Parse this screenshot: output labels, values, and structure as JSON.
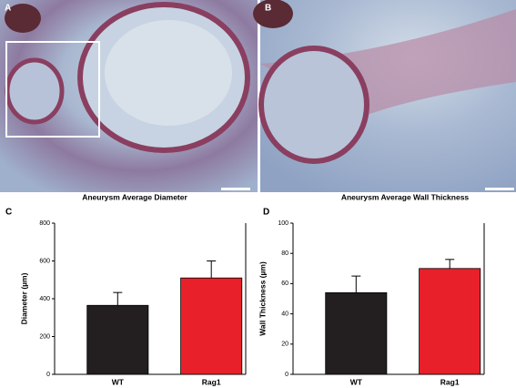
{
  "panel_labels": [
    "A",
    "B",
    "C",
    "D"
  ],
  "chart_data": [
    {
      "type": "bar",
      "title": "Aneurysm Average Diameter",
      "y_label": "Diameter (µm)",
      "categories": [
        "WT",
        "Rag1"
      ],
      "values": [
        365,
        510
      ],
      "errors": [
        68,
        90
      ],
      "colors": [
        "#231f20",
        "#e8202a"
      ],
      "ylim": [
        0,
        800
      ],
      "yticks": [
        0,
        200,
        400,
        600,
        800
      ]
    },
    {
      "type": "bar",
      "title": "Aneurysm Average Wall Thickness",
      "y_label": "Wall Thickness (µm)",
      "categories": [
        "WT",
        "Rag1"
      ],
      "values": [
        54,
        70
      ],
      "errors": [
        11,
        6
      ],
      "colors": [
        "#231f20",
        "#e8202a"
      ],
      "ylim": [
        0,
        100
      ],
      "yticks": [
        0,
        20,
        40,
        60,
        80,
        100
      ]
    }
  ]
}
